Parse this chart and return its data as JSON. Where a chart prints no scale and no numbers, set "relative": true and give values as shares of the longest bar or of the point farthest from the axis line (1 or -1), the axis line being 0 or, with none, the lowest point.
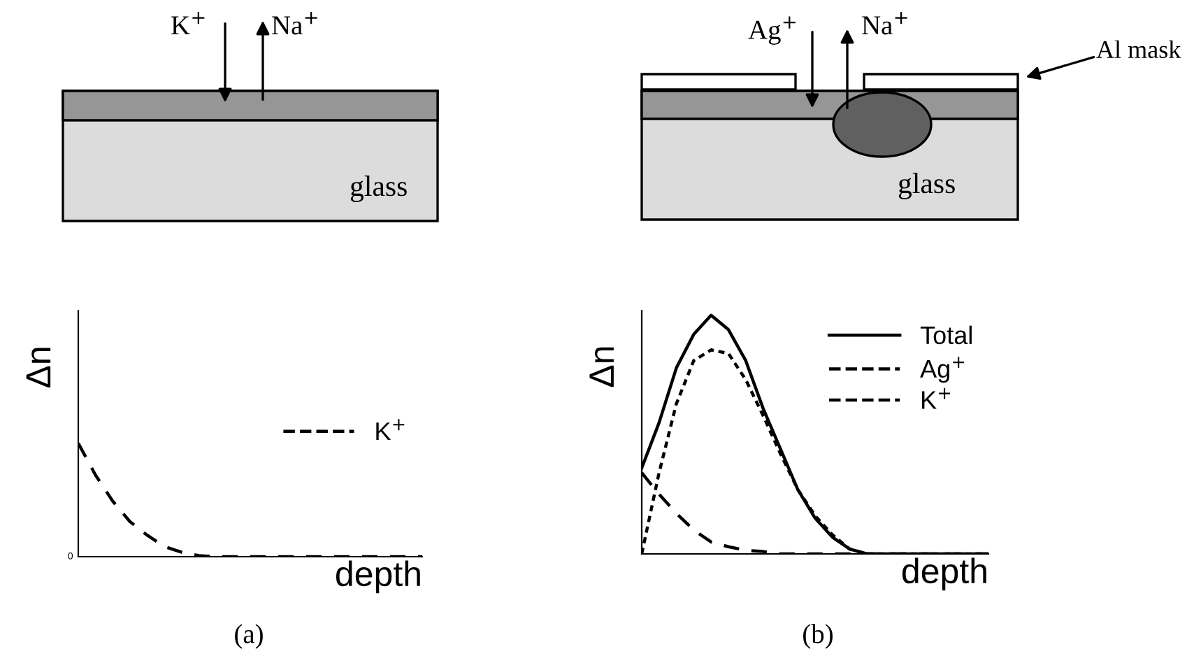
{
  "chart_data": [
    {
      "type": "line",
      "relative": true,
      "xlabel": "depth",
      "ylabel": "Δn",
      "legend": "right",
      "annotations": [
        "K$^{+}$",
        "Na$^{+}$",
        "glass",
        "0",
        "(a)"
      ],
      "categories": [
        null,
        null,
        null,
        null,
        null,
        null,
        null,
        null,
        null,
        null,
        null,
        null,
        null,
        null,
        null,
        null,
        null,
        null,
        null,
        null,
        null
      ],
      "series": [
        {
          "name": "K$^{+}$",
          "color": "#000000",
          "line_style": "dashed",
          "values": [
            1,
            0.72,
            0.49,
            0.31,
            0.19,
            0.09,
            0.04,
            0.01,
            0,
            0,
            0,
            0,
            0,
            0,
            0,
            0,
            0,
            0,
            0,
            0,
            0
          ]
        }
      ]
    },
    {
      "type": "line",
      "relative": true,
      "xlabel": "depth",
      "ylabel": "Δn",
      "legend": "top right",
      "annotations": [
        "Ag$^{+}$",
        "Na$^{+}$",
        "Al mask",
        "glass",
        "(b)"
      ],
      "categories": [
        null,
        null,
        null,
        null,
        null,
        null,
        null,
        null,
        null,
        null,
        null,
        null,
        null,
        null,
        null,
        null,
        null,
        null,
        null,
        null,
        null
      ],
      "series": [
        {
          "name": "Total",
          "color": "#000000",
          "line_style": "solid",
          "values": [
            0.36,
            0.55,
            0.78,
            0.92,
            1,
            0.94,
            0.81,
            0.61,
            0.44,
            0.27,
            0.15,
            0.07,
            0.02,
            0,
            0,
            0,
            0,
            0,
            0,
            0,
            0
          ]
        },
        {
          "name": "Ag$^{+}$",
          "color": "#000000",
          "line_style": "dotted",
          "values": [
            0,
            0.34,
            0.63,
            0.81,
            0.855,
            0.84,
            0.73,
            0.58,
            0.42,
            0.27,
            0.16,
            0.08,
            0.02,
            0,
            0,
            0,
            0,
            0,
            0,
            0,
            0
          ]
        },
        {
          "name": "K$^{+}$",
          "color": "#000000",
          "line_style": "dashed",
          "values": [
            0.34,
            0.25,
            0.17,
            0.1,
            0.05,
            0.03,
            0.015,
            0.01,
            0,
            0,
            0,
            0,
            0,
            0,
            0,
            0,
            0,
            0,
            0,
            0,
            0
          ]
        }
      ]
    }
  ]
}
